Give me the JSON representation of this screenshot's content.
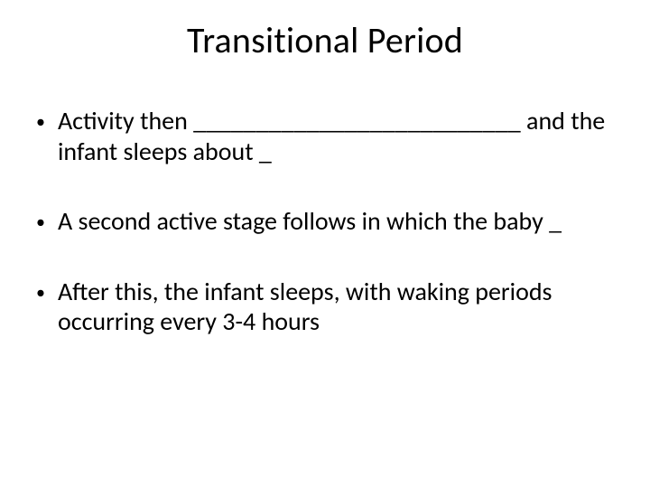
{
  "slide": {
    "title": "Transitional Period",
    "title_fontsize": 40,
    "body_fontsize": 28,
    "background_color": "#ffffff",
    "text_color": "#000000",
    "bullets": [
      {
        "text": "Activity then __________________________ and the infant sleeps about _"
      },
      {
        "text": "A second active stage follows in which the baby _"
      },
      {
        "text": "After this, the infant sleeps, with waking periods occurring every 3-4 hours"
      }
    ]
  }
}
